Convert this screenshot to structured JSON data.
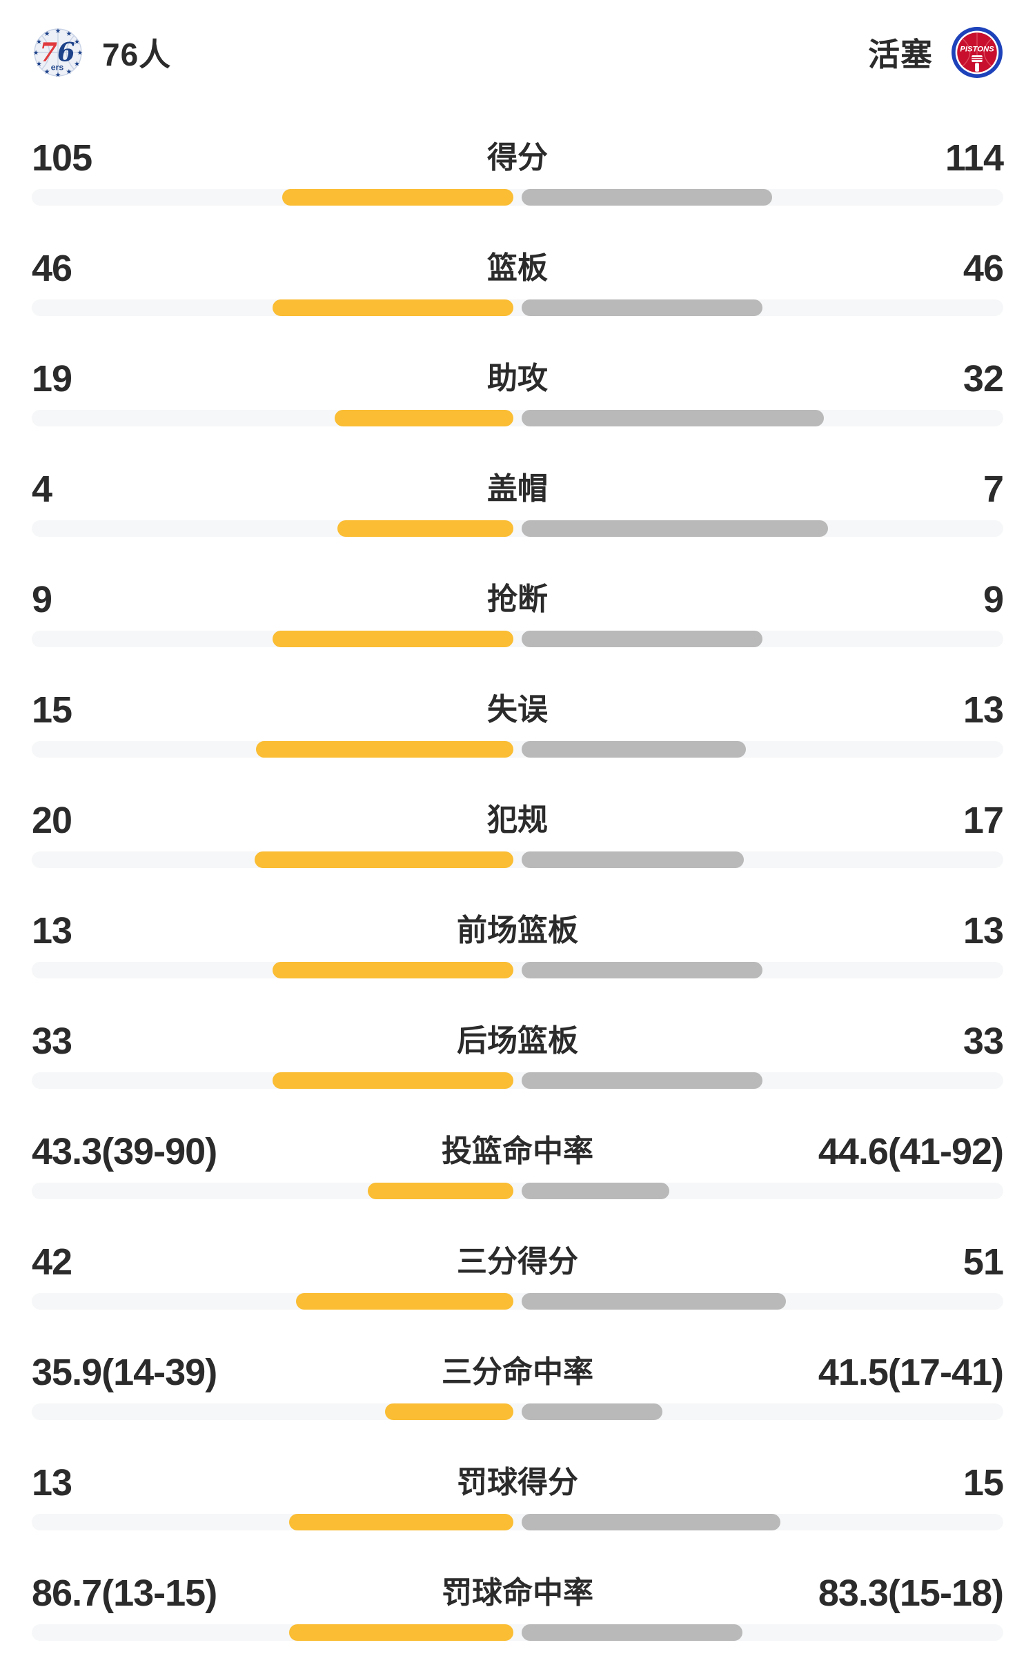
{
  "header": {
    "home_team": "76人",
    "away_team": "活塞",
    "home_logo": {
      "seven": "7",
      "six": "6",
      "ers": "ers"
    },
    "away_logo": {
      "label": "PISTONS"
    }
  },
  "colors": {
    "home_bar": "#FABD33",
    "away_bar": "#B9B9B9",
    "bar_track": "#F6F7F8",
    "text": "#2B2B2B",
    "sixers_blue": "#1D428A",
    "sixers_red": "#E03A3E",
    "pistons_blue": "#1D42BA",
    "pistons_red": "#C8102E"
  },
  "chart_data": {
    "type": "bar",
    "orientation": "horizontal-paired-from-center",
    "teams": [
      "76人",
      "活塞"
    ],
    "categories": [
      "得分",
      "篮板",
      "助攻",
      "盖帽",
      "抢断",
      "失误",
      "犯规",
      "前场篮板",
      "后场篮板",
      "投篮命中率",
      "三分得分",
      "三分命中率",
      "罚球得分",
      "罚球命中率"
    ],
    "series": [
      {
        "name": "76人",
        "values": [
          105,
          46,
          19,
          4,
          9,
          15,
          20,
          13,
          33,
          43.3,
          42,
          35.9,
          13,
          86.7
        ]
      },
      {
        "name": "活塞",
        "values": [
          114,
          46,
          32,
          7,
          9,
          13,
          17,
          13,
          33,
          44.6,
          51,
          41.5,
          15,
          83.3
        ]
      }
    ],
    "value_labels": [
      [
        "105",
        "114"
      ],
      [
        "46",
        "46"
      ],
      [
        "19",
        "32"
      ],
      [
        "4",
        "7"
      ],
      [
        "9",
        "9"
      ],
      [
        "15",
        "13"
      ],
      [
        "20",
        "17"
      ],
      [
        "13",
        "13"
      ],
      [
        "33",
        "33"
      ],
      [
        "43.3(39-90)",
        "44.6(41-92)"
      ],
      [
        "42",
        "51"
      ],
      [
        "35.9(14-39)",
        "41.5(17-41)"
      ],
      [
        "13",
        "15"
      ],
      [
        "86.7(13-15)",
        "83.3(15-18)"
      ]
    ]
  },
  "stats": [
    {
      "label": "得分",
      "home": "105",
      "away": "114",
      "home_bar_pct": 23.8,
      "away_bar_pct": 25.8
    },
    {
      "label": "篮板",
      "home": "46",
      "away": "46",
      "home_bar_pct": 24.8,
      "away_bar_pct": 24.8
    },
    {
      "label": "助攻",
      "home": "19",
      "away": "32",
      "home_bar_pct": 18.4,
      "away_bar_pct": 31.1
    },
    {
      "label": "盖帽",
      "home": "4",
      "away": "7",
      "home_bar_pct": 18.1,
      "away_bar_pct": 31.5
    },
    {
      "label": "抢断",
      "home": "9",
      "away": "9",
      "home_bar_pct": 24.8,
      "away_bar_pct": 24.8
    },
    {
      "label": "失误",
      "home": "15",
      "away": "13",
      "home_bar_pct": 26.5,
      "away_bar_pct": 23.1
    },
    {
      "label": "犯规",
      "home": "20",
      "away": "17",
      "home_bar_pct": 26.6,
      "away_bar_pct": 22.9
    },
    {
      "label": "前场篮板",
      "home": "13",
      "away": "13",
      "home_bar_pct": 24.8,
      "away_bar_pct": 24.8
    },
    {
      "label": "后场篮板",
      "home": "33",
      "away": "33",
      "home_bar_pct": 24.8,
      "away_bar_pct": 24.8
    },
    {
      "label": "投篮命中率",
      "home": "43.3(39-90)",
      "away": "44.6(41-92)",
      "home_bar_pct": 15.0,
      "away_bar_pct": 15.2
    },
    {
      "label": "三分得分",
      "home": "42",
      "away": "51",
      "home_bar_pct": 22.4,
      "away_bar_pct": 27.2
    },
    {
      "label": "三分命中率",
      "home": "35.9(14-39)",
      "away": "41.5(17-41)",
      "home_bar_pct": 13.2,
      "away_bar_pct": 14.5
    },
    {
      "label": "罚球得分",
      "home": "13",
      "away": "15",
      "home_bar_pct": 23.1,
      "away_bar_pct": 26.6
    },
    {
      "label": "罚球命中率",
      "home": "86.7(13-15)",
      "away": "83.3(15-18)",
      "home_bar_pct": 23.1,
      "away_bar_pct": 22.7
    }
  ]
}
